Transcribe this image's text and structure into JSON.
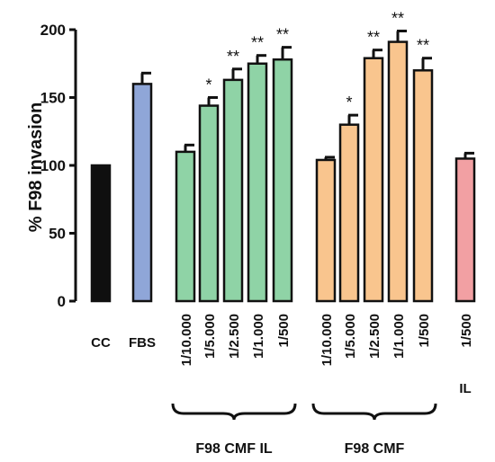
{
  "chart_data": {
    "type": "bar",
    "ylabel": "% F98 invasion",
    "ylim": [
      0,
      200
    ],
    "yticks": [
      0,
      50,
      100,
      150,
      200
    ],
    "bars": [
      {
        "label": "CC",
        "value": 100,
        "error": 0,
        "color": "#0f0f0f",
        "sig": ""
      },
      {
        "label": "FBS",
        "value": 160,
        "error": 8,
        "color": "#8fa6d8",
        "sig": ""
      },
      {
        "label": "1/10.000",
        "value": 110,
        "error": 5,
        "color": "#8fd3a6",
        "sig": ""
      },
      {
        "label": "1/5.000",
        "value": 144,
        "error": 6,
        "color": "#8fd3a6",
        "sig": "*"
      },
      {
        "label": "1/2.500",
        "value": 163,
        "error": 8,
        "color": "#8fd3a6",
        "sig": "**"
      },
      {
        "label": "1/1.000",
        "value": 175,
        "error": 6,
        "color": "#8fd3a6",
        "sig": "**"
      },
      {
        "label": "1/500",
        "value": 178,
        "error": 9,
        "color": "#8fd3a6",
        "sig": "**"
      },
      {
        "label": "1/10.000",
        "value": 104,
        "error": 2,
        "color": "#f9c58e",
        "sig": ""
      },
      {
        "label": "1/5.000",
        "value": 130,
        "error": 7,
        "color": "#f9c58e",
        "sig": "*"
      },
      {
        "label": "1/2.500",
        "value": 179,
        "error": 6,
        "color": "#f9c58e",
        "sig": "**"
      },
      {
        "label": "1/1.000",
        "value": 191,
        "error": 8,
        "color": "#f9c58e",
        "sig": "**"
      },
      {
        "label": "1/500",
        "value": 170,
        "error": 9,
        "color": "#f9c58e",
        "sig": "**"
      },
      {
        "label": "1/500",
        "value": 105,
        "error": 4,
        "color": "#f2a0a3",
        "sig": ""
      }
    ],
    "groups": [
      {
        "label": "F98 CMF IL",
        "from": 2,
        "to": 6
      },
      {
        "label": "F98 CMF",
        "from": 7,
        "to": 11
      }
    ],
    "extra_labels": [
      {
        "label": "IL",
        "bar": 12
      }
    ]
  }
}
